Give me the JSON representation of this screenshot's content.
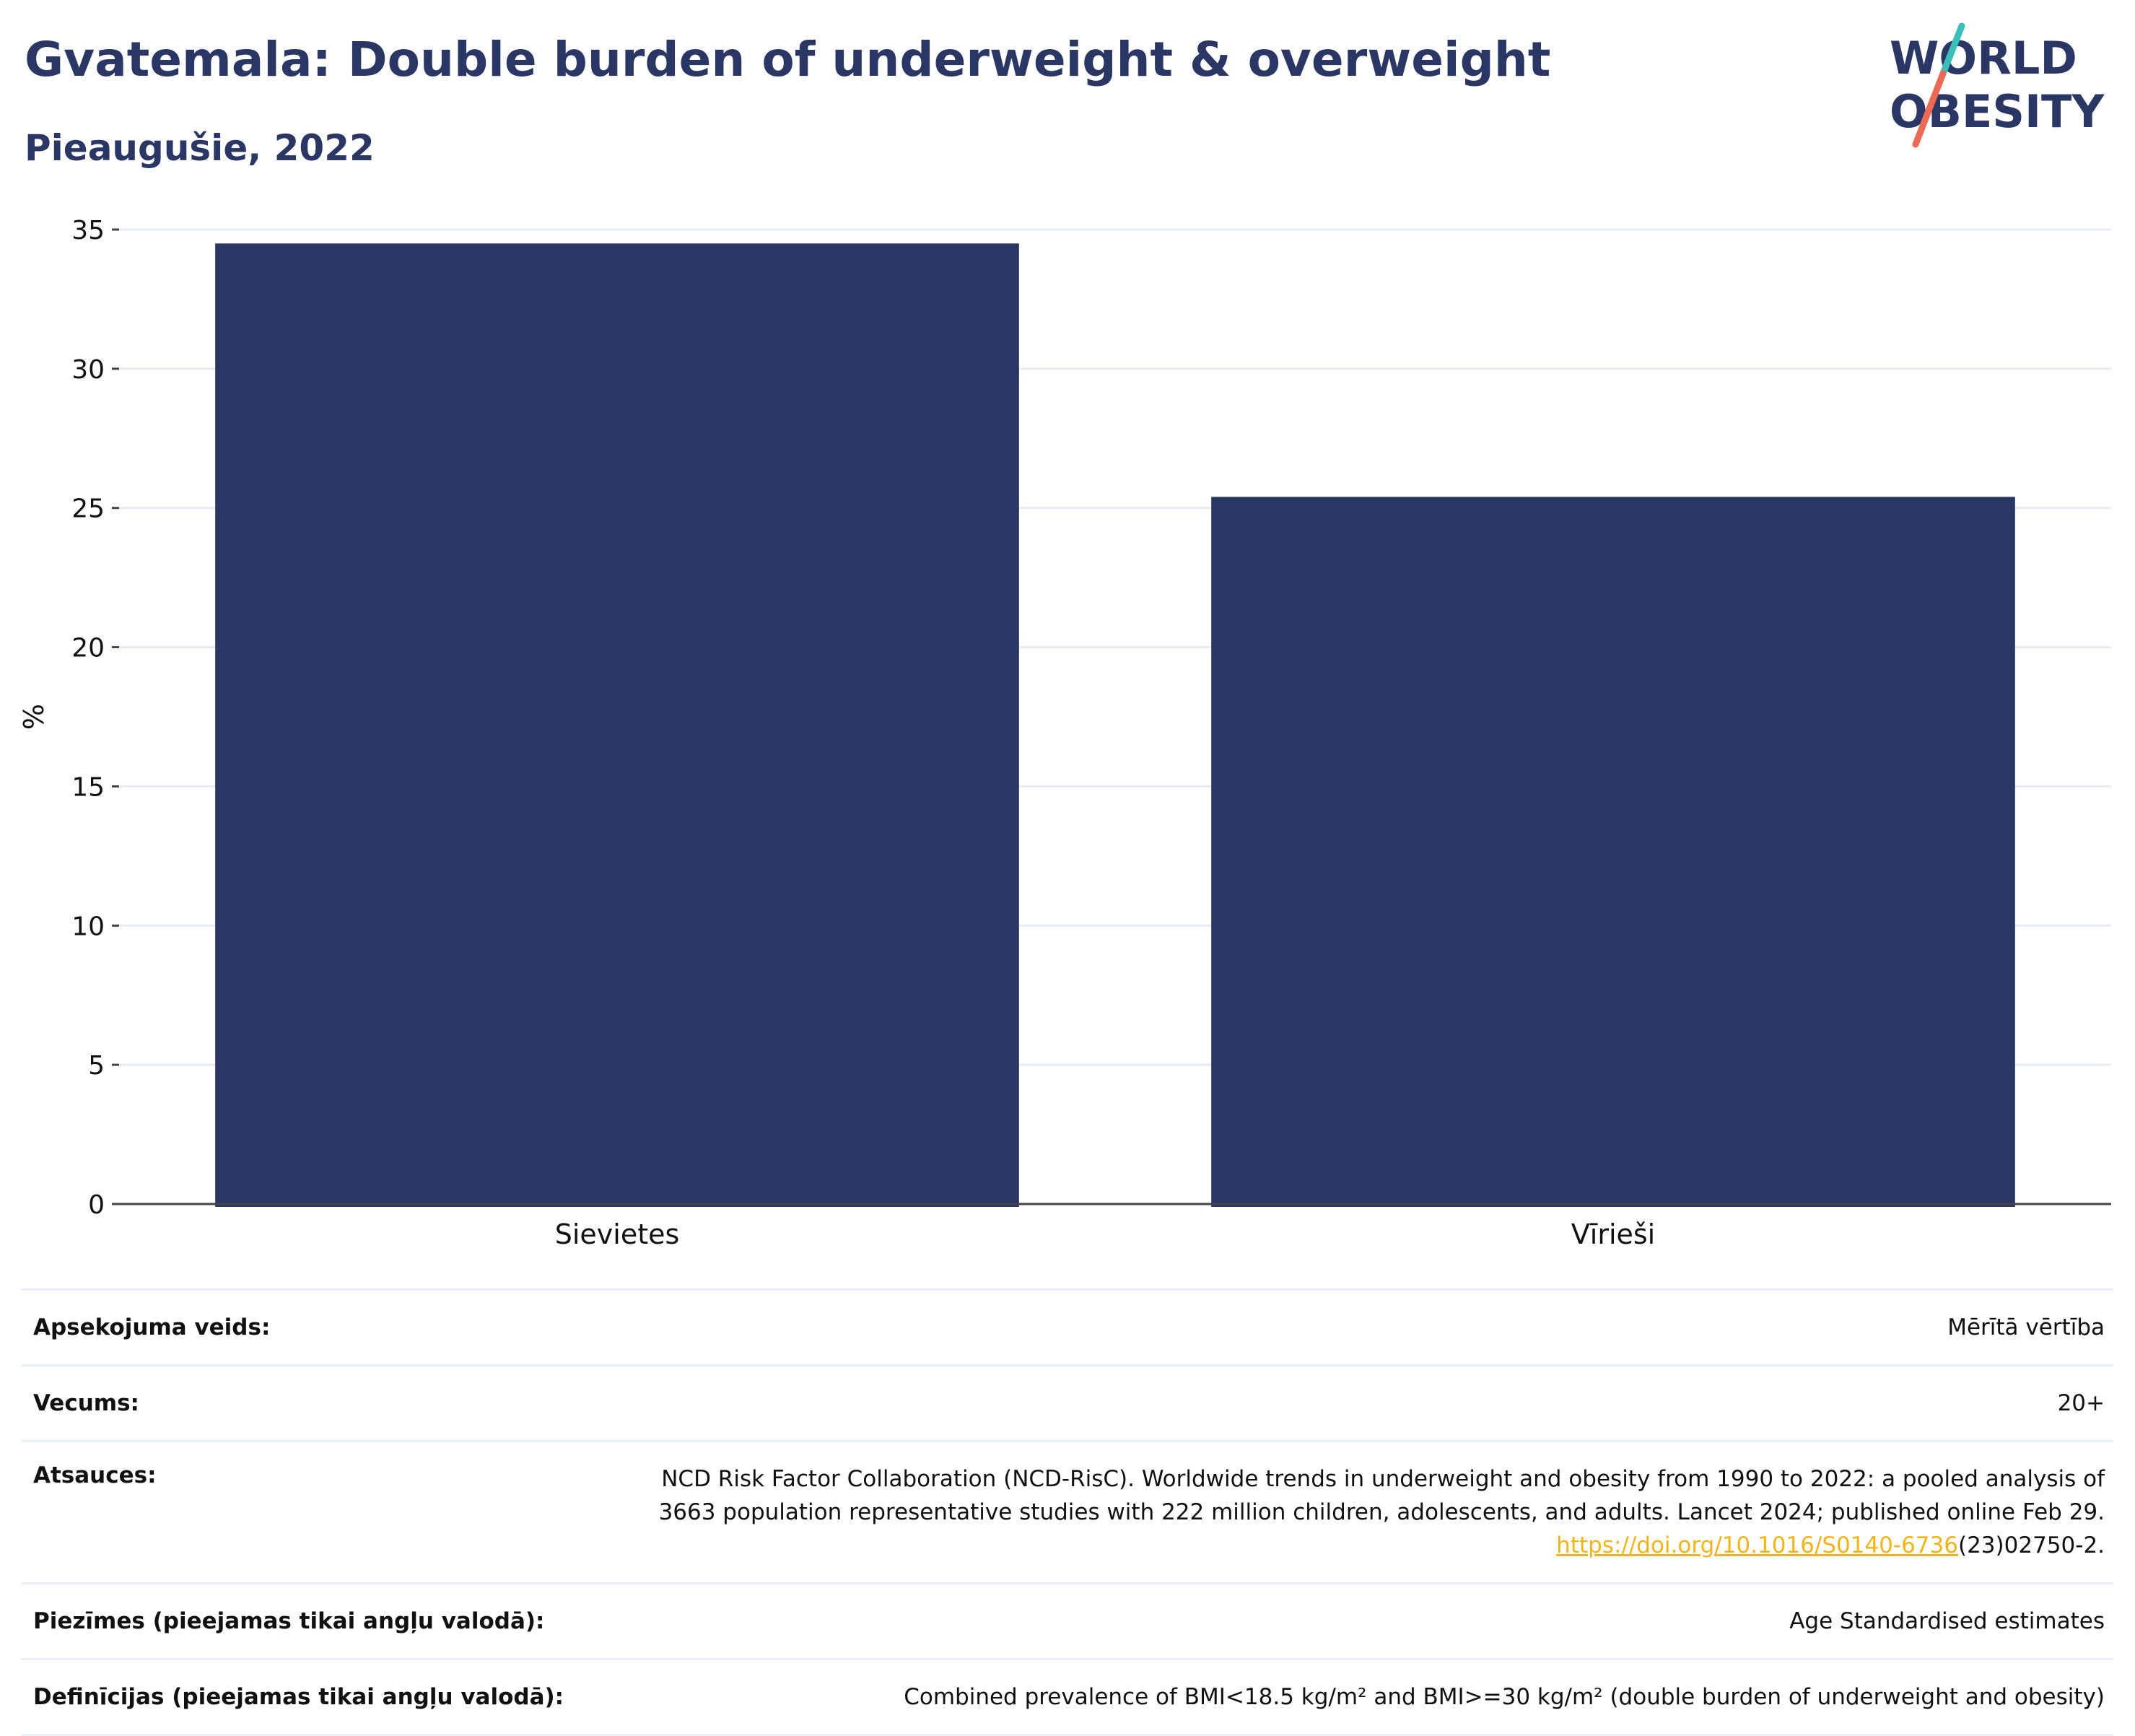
{
  "header": {
    "title": "Gvatemala: Double burden of underweight & overweight",
    "subtitle": "Pieaugušie, 2022"
  },
  "logo": {
    "line1": "WORLD",
    "line2": "OBESITY",
    "colors": {
      "text": "#2a3663",
      "slash_top": "#3bbfb8",
      "slash_bottom": "#ec6a55"
    }
  },
  "chart_data": {
    "type": "bar",
    "categories": [
      "Sievietes",
      "Vīrieši"
    ],
    "values": [
      34.5,
      25.4
    ],
    "ylabel": "%",
    "ylim": [
      0,
      35
    ],
    "yticks": [
      0,
      5,
      10,
      15,
      20,
      25,
      30,
      35
    ],
    "grid": true,
    "bar_color": "#2a3663"
  },
  "meta": {
    "rows": [
      {
        "label": "Apsekojuma veids:",
        "value": "Mērītā vērtība"
      },
      {
        "label": "Vecums:",
        "value": "20+"
      },
      {
        "label": "Atsauces:",
        "value_line1": "NCD Risk Factor Collaboration (NCD-RisC). Worldwide trends in underweight and obesity from 1990 to 2022: a pooled analysis of",
        "value_line2": "3663 population representative studies with 222 million children, adolescents, and adults. Lancet 2024; published online Feb 29.",
        "link_text": "https://doi.org/10.1016/S0140-6736",
        "link_tail": "(23)02750-2."
      },
      {
        "label": "Piezīmes (pieejamas tikai angļu valodā):",
        "value": "Age Standardised estimates"
      },
      {
        "label": "Definīcijas (pieejamas tikai angļu valodā):",
        "value": "Combined prevalence of BMI<18.5 kg/m² and BMI>=30 kg/m² (double burden of underweight and obesity)"
      }
    ]
  }
}
